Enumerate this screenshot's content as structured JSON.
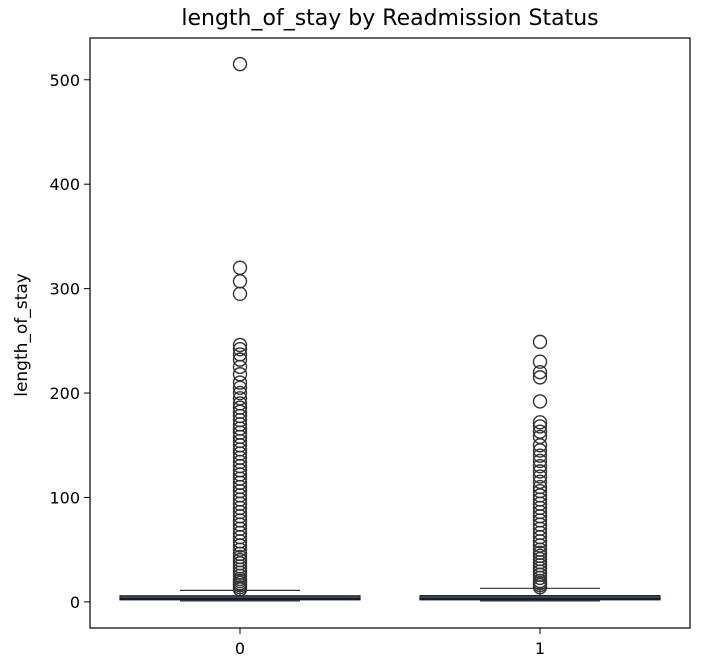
{
  "chart_data": {
    "type": "box",
    "title": "length_of_stay by Readmission Status",
    "xlabel": "",
    "ylabel": "length_of_stay",
    "categories": [
      "0",
      "1"
    ],
    "ylim": [
      -25,
      540
    ],
    "yticks": [
      0,
      100,
      200,
      300,
      400,
      500
    ],
    "ytick_labels": [
      "0",
      "100",
      "200",
      "300",
      "400",
      "500"
    ],
    "box_color": "#3a4a66",
    "series": [
      {
        "category": "0",
        "whisker_low": 1,
        "q1": 2,
        "median": 3,
        "q3": 5,
        "whisker_high": 11,
        "outliers": [
          12,
          14,
          16,
          18,
          20,
          22,
          25,
          28,
          31,
          34,
          37,
          40,
          43,
          46,
          50,
          54,
          58,
          62,
          66,
          70,
          74,
          78,
          82,
          86,
          90,
          94,
          98,
          102,
          106,
          110,
          114,
          118,
          122,
          126,
          130,
          134,
          138,
          142,
          146,
          150,
          154,
          158,
          162,
          166,
          170,
          174,
          178,
          182,
          186,
          190,
          195,
          200,
          205,
          210,
          218,
          225,
          232,
          237,
          242,
          246,
          295,
          307,
          320,
          515
        ]
      },
      {
        "category": "1",
        "whisker_low": 1,
        "q1": 2,
        "median": 3,
        "q3": 6,
        "whisker_high": 13,
        "outliers": [
          14,
          16,
          18,
          20,
          23,
          26,
          29,
          32,
          35,
          38,
          41,
          44,
          47,
          50,
          54,
          58,
          62,
          66,
          70,
          74,
          78,
          82,
          86,
          90,
          94,
          98,
          102,
          106,
          110,
          115,
          120,
          125,
          130,
          135,
          140,
          145,
          150,
          158,
          163,
          168,
          172,
          192,
          215,
          220,
          230,
          249
        ]
      }
    ]
  }
}
